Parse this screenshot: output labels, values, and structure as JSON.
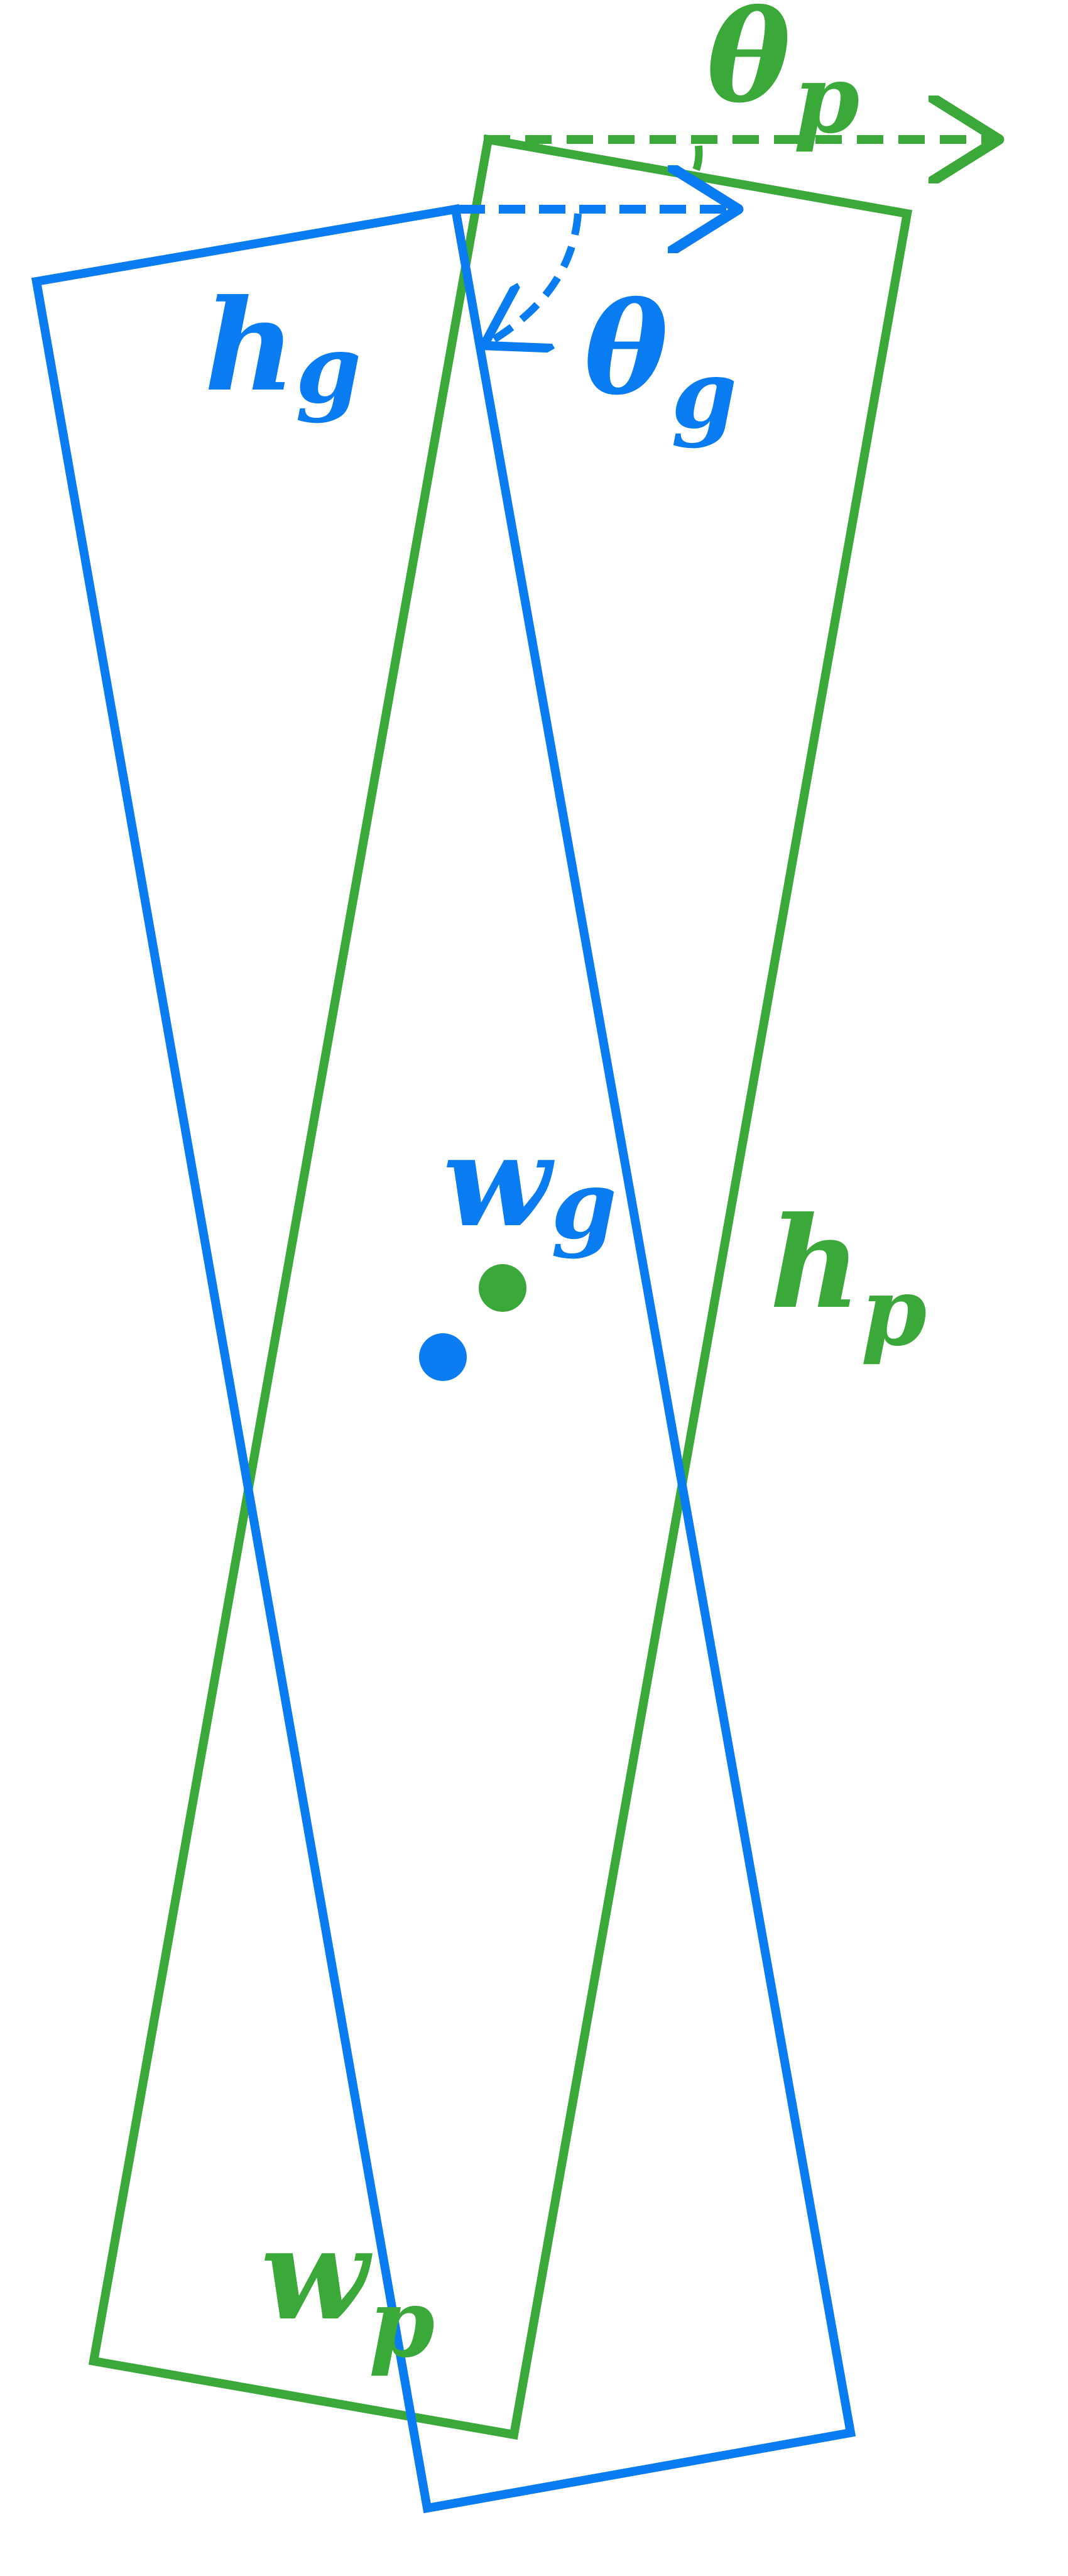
{
  "colors": {
    "ground_truth": "#0A7CF2",
    "prediction": "#3BA83A",
    "background": "#FFFFFF"
  },
  "labels": {
    "theta_p": {
      "main": "θ",
      "sub": "p"
    },
    "theta_g": {
      "main": "θ",
      "sub": "g"
    },
    "h_g": {
      "main": "h",
      "sub": "g"
    },
    "w_g": {
      "main": "w",
      "sub": "g"
    },
    "h_p": {
      "main": "h",
      "sub": "p"
    },
    "w_p": {
      "main": "w",
      "sub": "p"
    }
  }
}
